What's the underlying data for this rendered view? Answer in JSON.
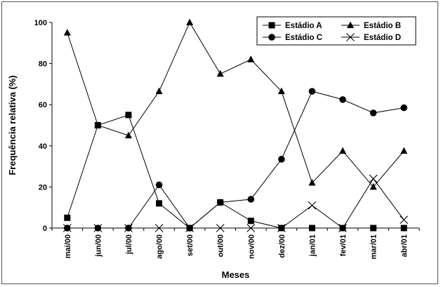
{
  "chart_data": {
    "type": "line",
    "xlabel": "Meses",
    "ylabel": "Frequência relativa (%)",
    "ylim": [
      0,
      100
    ],
    "yticks": [
      "0",
      "20",
      "40",
      "60",
      "80",
      "100"
    ],
    "categories": [
      "mai/00",
      "jun/00",
      "jul/00",
      "ago/00",
      "set/00",
      "out/00",
      "nov/00",
      "dez/00",
      "jan/01",
      "fev/01",
      "mar/01",
      "abr/01"
    ],
    "grid": false,
    "legend_position": "top-right",
    "series": [
      {
        "name": "Estádio A",
        "marker": "square",
        "values": [
          5,
          50,
          55,
          12,
          0,
          12.5,
          3.5,
          0,
          0,
          0,
          0,
          0
        ]
      },
      {
        "name": "Estádio B",
        "marker": "triangle",
        "values": [
          95,
          50,
          45,
          66.5,
          100,
          75,
          82,
          66.5,
          22,
          37.5,
          20,
          37.5
        ]
      },
      {
        "name": "Estádio C",
        "marker": "circle",
        "values": [
          0,
          0,
          0,
          21,
          0,
          12.5,
          14,
          33.5,
          66.5,
          62.5,
          56,
          58.5
        ]
      },
      {
        "name": "Estádio D",
        "marker": "x",
        "values": [
          0,
          0,
          0,
          0,
          0,
          0,
          0,
          0,
          11,
          0,
          24,
          4
        ]
      }
    ]
  }
}
